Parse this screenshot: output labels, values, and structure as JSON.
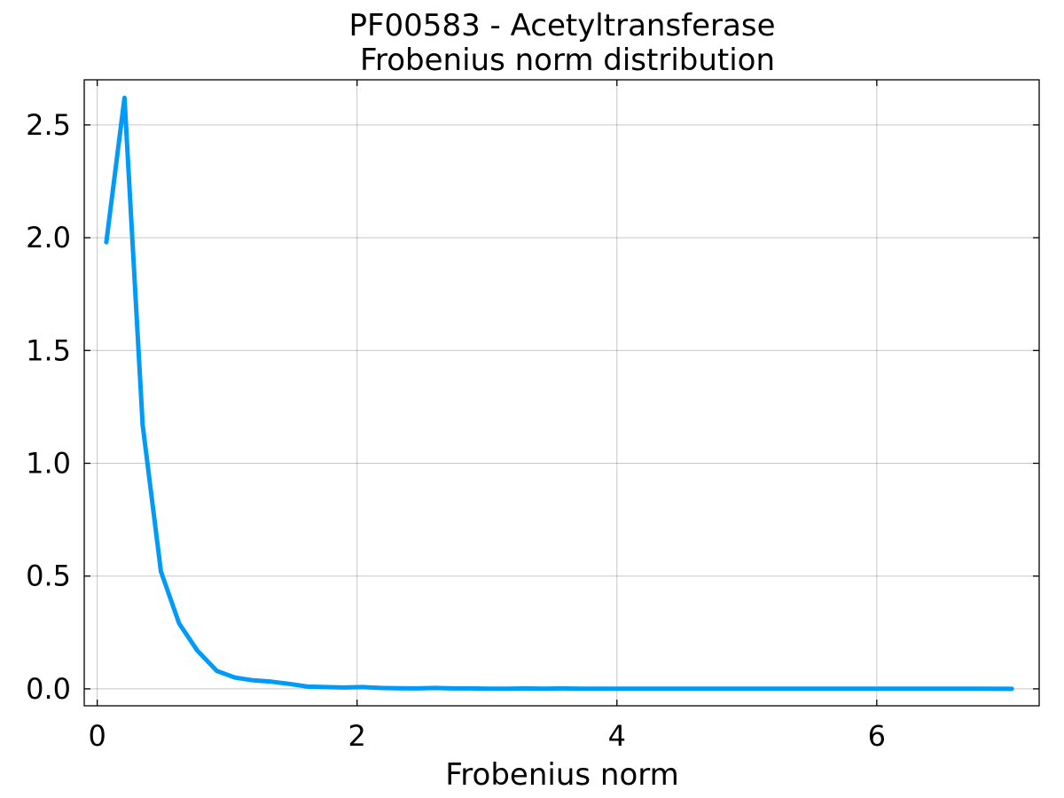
{
  "chart_data": {
    "type": "line",
    "title": "PF00583 - Acetyltransferase",
    "subtitle": "Frobenius norm distribution",
    "xlabel": "Frobenius norm",
    "ylabel": "",
    "xlim": [
      -0.1,
      7.25
    ],
    "ylim": [
      -0.075,
      2.7
    ],
    "xticks": [
      0,
      2,
      4,
      6
    ],
    "xtick_labels": [
      "0",
      "2",
      "4",
      "6"
    ],
    "yticks": [
      0.0,
      0.5,
      1.0,
      1.5,
      2.0,
      2.5
    ],
    "ytick_labels": [
      "0.0",
      "0.5",
      "1.0",
      "1.5",
      "2.0",
      "2.5"
    ],
    "grid": true,
    "legend": "none",
    "series": [
      {
        "color": "#009af9",
        "x": [
          0.07,
          0.21,
          0.35,
          0.49,
          0.63,
          0.77,
          0.92,
          1.06,
          1.2,
          1.34,
          1.48,
          1.62,
          1.76,
          1.9,
          2.04,
          2.18,
          2.32,
          2.46,
          2.6,
          2.74,
          2.88,
          3.02,
          3.16,
          3.3,
          3.44,
          3.58,
          3.72,
          3.86,
          4.0,
          4.14,
          4.28,
          4.42,
          4.56,
          4.7,
          4.84,
          4.98,
          5.12,
          5.26,
          5.4,
          5.54,
          5.68,
          5.82,
          5.96,
          6.1,
          6.24,
          6.38,
          6.52,
          6.66,
          6.8,
          7.04
        ],
        "y": [
          1.98,
          2.62,
          1.17,
          0.52,
          0.29,
          0.17,
          0.08,
          0.05,
          0.038,
          0.032,
          0.022,
          0.01,
          0.008,
          0.006,
          0.008,
          0.004,
          0.003,
          0.002,
          0.004,
          0.002,
          0.002,
          0.001,
          0.001,
          0.002,
          0.001,
          0.002,
          0.001,
          0.001,
          0.001,
          0.001,
          0.001,
          0.001,
          0.0005,
          0.0005,
          0.0005,
          0.0005,
          0.0005,
          0.0005,
          0.0005,
          0.0005,
          0.0005,
          0.0005,
          0.0005,
          0.0003,
          0.0003,
          0.0003,
          0.0003,
          0.0003,
          0.0003,
          0.0002
        ]
      }
    ]
  }
}
